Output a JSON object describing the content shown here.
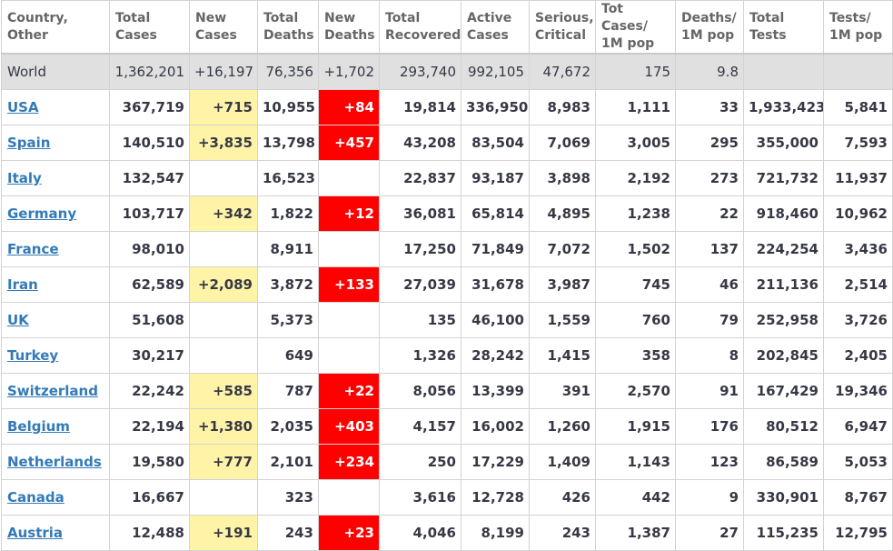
{
  "headers": [
    [
      "Country,",
      "Other"
    ],
    [
      "Total",
      "Cases"
    ],
    [
      "New",
      "Cases"
    ],
    [
      "Total",
      "Deaths"
    ],
    [
      "New",
      "Deaths"
    ],
    [
      "Total",
      "Recovered"
    ],
    [
      "Active",
      "Cases"
    ],
    [
      "Serious,",
      "Critical"
    ],
    [
      "Tot Cases/",
      "1M pop"
    ],
    [
      "Deaths/",
      "1M pop"
    ],
    [
      "Total",
      "Tests"
    ],
    [
      "Tests/",
      "1M pop"
    ]
  ],
  "world": [
    "World",
    "1,362,201",
    "+16,197",
    "76,356",
    "+1,702",
    "293,740",
    "992,105",
    "47,672",
    "175",
    "9.8",
    "",
    ""
  ],
  "rows": [
    [
      "USA",
      "367,719",
      "+715",
      "10,955",
      "+84",
      "19,814",
      "336,950",
      "8,983",
      "1,111",
      "33",
      "1,933,423",
      "5,841"
    ],
    [
      "Spain",
      "140,510",
      "+3,835",
      "13,798",
      "+457",
      "43,208",
      "83,504",
      "7,069",
      "3,005",
      "295",
      "355,000",
      "7,593"
    ],
    [
      "Italy",
      "132,547",
      "",
      "16,523",
      "",
      "22,837",
      "93,187",
      "3,898",
      "2,192",
      "273",
      "721,732",
      "11,937"
    ],
    [
      "Germany",
      "103,717",
      "+342",
      "1,822",
      "+12",
      "36,081",
      "65,814",
      "4,895",
      "1,238",
      "22",
      "918,460",
      "10,962"
    ],
    [
      "France",
      "98,010",
      "",
      "8,911",
      "",
      "17,250",
      "71,849",
      "7,072",
      "1,502",
      "137",
      "224,254",
      "3,436"
    ],
    [
      "Iran",
      "62,589",
      "+2,089",
      "3,872",
      "+133",
      "27,039",
      "31,678",
      "3,987",
      "745",
      "46",
      "211,136",
      "2,514"
    ],
    [
      "UK",
      "51,608",
      "",
      "5,373",
      "",
      "135",
      "46,100",
      "1,559",
      "760",
      "79",
      "252,958",
      "3,726"
    ],
    [
      "Turkey",
      "30,217",
      "",
      "649",
      "",
      "1,326",
      "28,242",
      "1,415",
      "358",
      "8",
      "202,845",
      "2,405"
    ],
    [
      "Switzerland",
      "22,242",
      "+585",
      "787",
      "+22",
      "8,056",
      "13,399",
      "391",
      "2,570",
      "91",
      "167,429",
      "19,346"
    ],
    [
      "Belgium",
      "22,194",
      "+1,380",
      "2,035",
      "+403",
      "4,157",
      "16,002",
      "1,260",
      "1,915",
      "176",
      "80,512",
      "6,947"
    ],
    [
      "Netherlands",
      "19,580",
      "+777",
      "2,101",
      "+234",
      "250",
      "17,229",
      "1,409",
      "1,143",
      "123",
      "86,589",
      "5,053"
    ],
    [
      "Canada",
      "16,667",
      "",
      "323",
      "",
      "3,616",
      "12,728",
      "426",
      "442",
      "9",
      "330,901",
      "8,767"
    ],
    [
      "Austria",
      "12,488",
      "+191",
      "243",
      "+23",
      "4,046",
      "8,199",
      "243",
      "1,387",
      "27",
      "115,235",
      "12,795"
    ]
  ],
  "highlight_colors": {
    "new_cases": "#fff3a8",
    "new_deaths": "#ff0000",
    "world_row": "#e0e0e0",
    "link": "#337ab7"
  }
}
